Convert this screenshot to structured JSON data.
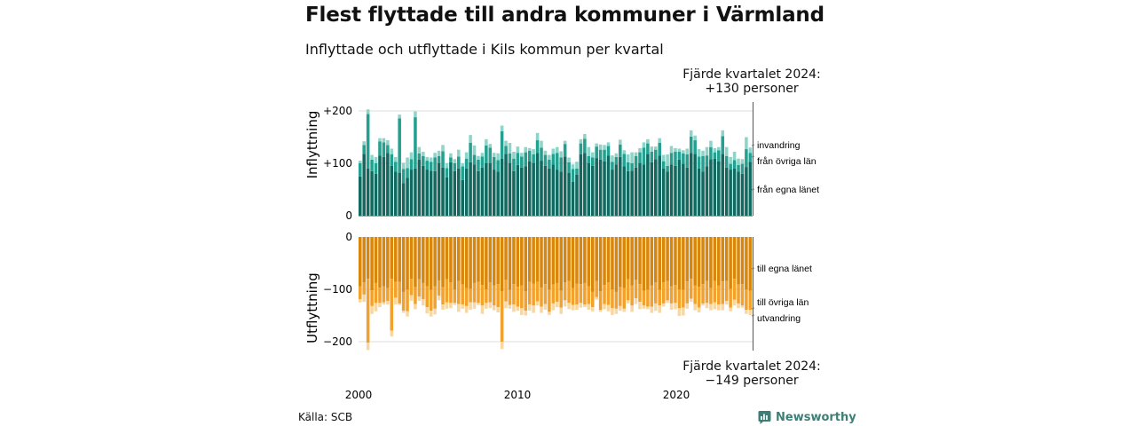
{
  "title": "Flest flyttade till andra kommuner i Värmland",
  "subtitle": "Inflyttade och utflyttade i Kils kommun per kvartal",
  "callout_top": {
    "line1": "Fjärde kvartalet 2024:",
    "line2": "+130 personer"
  },
  "callout_bottom": {
    "line1": "Fjärde kvartalet 2024:",
    "line2": "−149 personer"
  },
  "source": "Källa: SCB",
  "brand": {
    "name": "Newsworthy",
    "icon": "newsworthy-logo-icon",
    "color": "#3d7f76"
  },
  "colors": {
    "in_same_county": "#11695f",
    "in_other_county": "#24a090",
    "in_immigration": "#8ed4c8",
    "out_same_county": "#d9870c",
    "out_other_county": "#f2a22c",
    "out_emigration": "#f7d7a4",
    "grid": "#dddddd"
  },
  "chart_data": [
    {
      "type": "bar",
      "stacked": true,
      "ylabel": "Inflyttning",
      "ylim": [
        0,
        215
      ],
      "yticks": [
        0,
        100,
        200
      ],
      "ytick_labels": [
        "0",
        "+100",
        "+200"
      ],
      "x_start": "2000 Q1",
      "x_end": "2024 Q4",
      "x_ticks": [
        "2000",
        "2010",
        "2020"
      ],
      "grid": true,
      "legend": "right",
      "series": [
        {
          "name": "från egna länet",
          "values": [
            75,
            118,
            90,
            85,
            80,
            115,
            112,
            120,
            95,
            84,
            82,
            62,
            72,
            88,
            90,
            107,
            95,
            88,
            86,
            85,
            100,
            92,
            73,
            102,
            85,
            90,
            68,
            90,
            102,
            98,
            85,
            92,
            100,
            100,
            88,
            84,
            109,
            118,
            100,
            85,
            97,
            92,
            94,
            104,
            100,
            120,
            105,
            95,
            90,
            98,
            88,
            84,
            113,
            82,
            65,
            78,
            117,
            120,
            100,
            95,
            110,
            107,
            104,
            115,
            88,
            98,
            112,
            94,
            85,
            86,
            92,
            100,
            98,
            118,
            102,
            108,
            115,
            90,
            84,
            98,
            95,
            107,
            99,
            92,
            120,
            118,
            90,
            84,
            94,
            108,
            109,
            104,
            118,
            92,
            88,
            90,
            84,
            80,
            93,
            103
          ]
        },
        {
          "name": "från övriga län",
          "values": [
            25,
            17,
            104,
            22,
            20,
            27,
            28,
            15,
            22,
            19,
            104,
            27,
            19,
            20,
            98,
            12,
            19,
            17,
            17,
            26,
            14,
            31,
            18,
            9,
            15,
            23,
            26,
            19,
            37,
            18,
            22,
            21,
            34,
            30,
            24,
            22,
            52,
            15,
            19,
            24,
            23,
            21,
            27,
            20,
            17,
            24,
            25,
            21,
            17,
            20,
            32,
            27,
            24,
            20,
            24,
            12,
            21,
            27,
            14,
            16,
            22,
            19,
            22,
            18,
            15,
            14,
            24,
            24,
            17,
            14,
            22,
            21,
            32,
            20,
            20,
            18,
            24,
            14,
            11,
            22,
            27,
            15,
            20,
            25,
            31,
            26,
            23,
            30,
            21,
            23,
            12,
            21,
            34,
            22,
            11,
            16,
            13,
            19,
            34,
            17
          ]
        },
        {
          "name": "invandring",
          "values": [
            5,
            7,
            9,
            9,
            12,
            6,
            8,
            9,
            11,
            9,
            7,
            12,
            20,
            13,
            11,
            12,
            8,
            7,
            8,
            9,
            10,
            12,
            9,
            8,
            8,
            13,
            6,
            12,
            15,
            18,
            7,
            7,
            12,
            7,
            8,
            13,
            11,
            10,
            20,
            13,
            12,
            7,
            10,
            5,
            10,
            14,
            13,
            8,
            9,
            10,
            11,
            12,
            6,
            9,
            9,
            13,
            8,
            9,
            17,
            10,
            6,
            10,
            9,
            7,
            12,
            7,
            9,
            7,
            15,
            21,
            7,
            8,
            10,
            8,
            10,
            6,
            9,
            12,
            22,
            13,
            7,
            6,
            6,
            11,
            12,
            9,
            14,
            10,
            16,
            12,
            8,
            6,
            11,
            17,
            13,
            16,
            12,
            9,
            23,
            10
          ]
        }
      ]
    },
    {
      "type": "bar",
      "stacked": true,
      "ylabel": "Utflyttning",
      "ylim": [
        -215,
        0
      ],
      "yticks": [
        0,
        -100,
        -200
      ],
      "ytick_labels": [
        "0",
        "−100",
        "−200"
      ],
      "x_start": "2000 Q1",
      "x_end": "2024 Q4",
      "x_ticks": [
        "2000",
        "2010",
        "2020"
      ],
      "grid": true,
      "legend": "right",
      "series": [
        {
          "name": "till egna länet",
          "values": [
            -94,
            -87,
            -80,
            -102,
            -88,
            -97,
            -94,
            -98,
            -80,
            -86,
            -86,
            -105,
            -100,
            -80,
            -96,
            -81,
            -88,
            -94,
            -101,
            -94,
            -83,
            -96,
            -81,
            -87,
            -100,
            -84,
            -91,
            -98,
            -99,
            -88,
            -86,
            -92,
            -100,
            -87,
            -93,
            -90,
            -104,
            -82,
            -101,
            -90,
            -95,
            -93,
            -104,
            -86,
            -89,
            -86,
            -97,
            -90,
            -100,
            -91,
            -88,
            -103,
            -87,
            -84,
            -98,
            -89,
            -90,
            -88,
            -94,
            -105,
            -84,
            -104,
            -92,
            -87,
            -100,
            -105,
            -96,
            -98,
            -81,
            -93,
            -82,
            -90,
            -103,
            -101,
            -93,
            -87,
            -101,
            -87,
            -84,
            -94,
            -92,
            -100,
            -101,
            -85,
            -80,
            -93,
            -95,
            -90,
            -84,
            -98,
            -84,
            -93,
            -85,
            -84,
            -99,
            -80,
            -91,
            -90,
            -100,
            -103
          ]
        },
        {
          "name": "till övriga län",
          "values": [
            -25,
            -23,
            -122,
            -30,
            -38,
            -29,
            -31,
            -24,
            -99,
            -30,
            -41,
            -36,
            -42,
            -31,
            -32,
            -33,
            -31,
            -40,
            -40,
            -43,
            -29,
            -33,
            -44,
            -39,
            -26,
            -44,
            -38,
            -34,
            -26,
            -37,
            -40,
            -39,
            -26,
            -38,
            -38,
            -44,
            -96,
            -41,
            -29,
            -39,
            -38,
            -43,
            -37,
            -43,
            -42,
            -37,
            -36,
            -38,
            -43,
            -36,
            -36,
            -32,
            -34,
            -42,
            -32,
            -40,
            -36,
            -41,
            -34,
            -29,
            -31,
            -35,
            -36,
            -43,
            -36,
            -32,
            -36,
            -39,
            -40,
            -38,
            -35,
            -34,
            -28,
            -32,
            -40,
            -40,
            -30,
            -40,
            -37,
            -33,
            -34,
            -36,
            -34,
            -42,
            -38,
            -35,
            -40,
            -37,
            -42,
            -30,
            -41,
            -36,
            -43,
            -38,
            -36,
            -40,
            -36,
            -41,
            -39,
            -36
          ]
        },
        {
          "name": "utvandring",
          "values": [
            -6,
            -14,
            -14,
            -15,
            -16,
            -8,
            -4,
            -7,
            -11,
            -13,
            -3,
            -4,
            -10,
            -11,
            -10,
            -8,
            -12,
            -12,
            -11,
            -11,
            -9,
            -10,
            -12,
            -10,
            -4,
            -15,
            -8,
            -13,
            -14,
            -12,
            -4,
            -16,
            -11,
            -11,
            -9,
            -10,
            -14,
            -13,
            -7,
            -14,
            -8,
            -13,
            -9,
            -12,
            -14,
            -8,
            -12,
            -11,
            -6,
            -13,
            -10,
            -12,
            -12,
            -12,
            -10,
            -10,
            -9,
            -5,
            -11,
            -8,
            -5,
            -4,
            -10,
            -12,
            -13,
            -10,
            -9,
            -6,
            -6,
            -12,
            -11,
            -14,
            -6,
            -5,
            -12,
            -14,
            -14,
            -6,
            -5,
            -12,
            -12,
            -15,
            -15,
            -10,
            -6,
            -12,
            -9,
            -4,
            -10,
            -12,
            -13,
            -11,
            -12,
            -7,
            -7,
            -11,
            -9,
            -4,
            -8,
            -10
          ]
        }
      ]
    }
  ],
  "labels": {
    "in_legend": [
      "invandring",
      "från övriga län",
      "från egna länet"
    ],
    "out_legend": [
      "till egna länet",
      "till övriga län",
      "utvandring"
    ]
  }
}
